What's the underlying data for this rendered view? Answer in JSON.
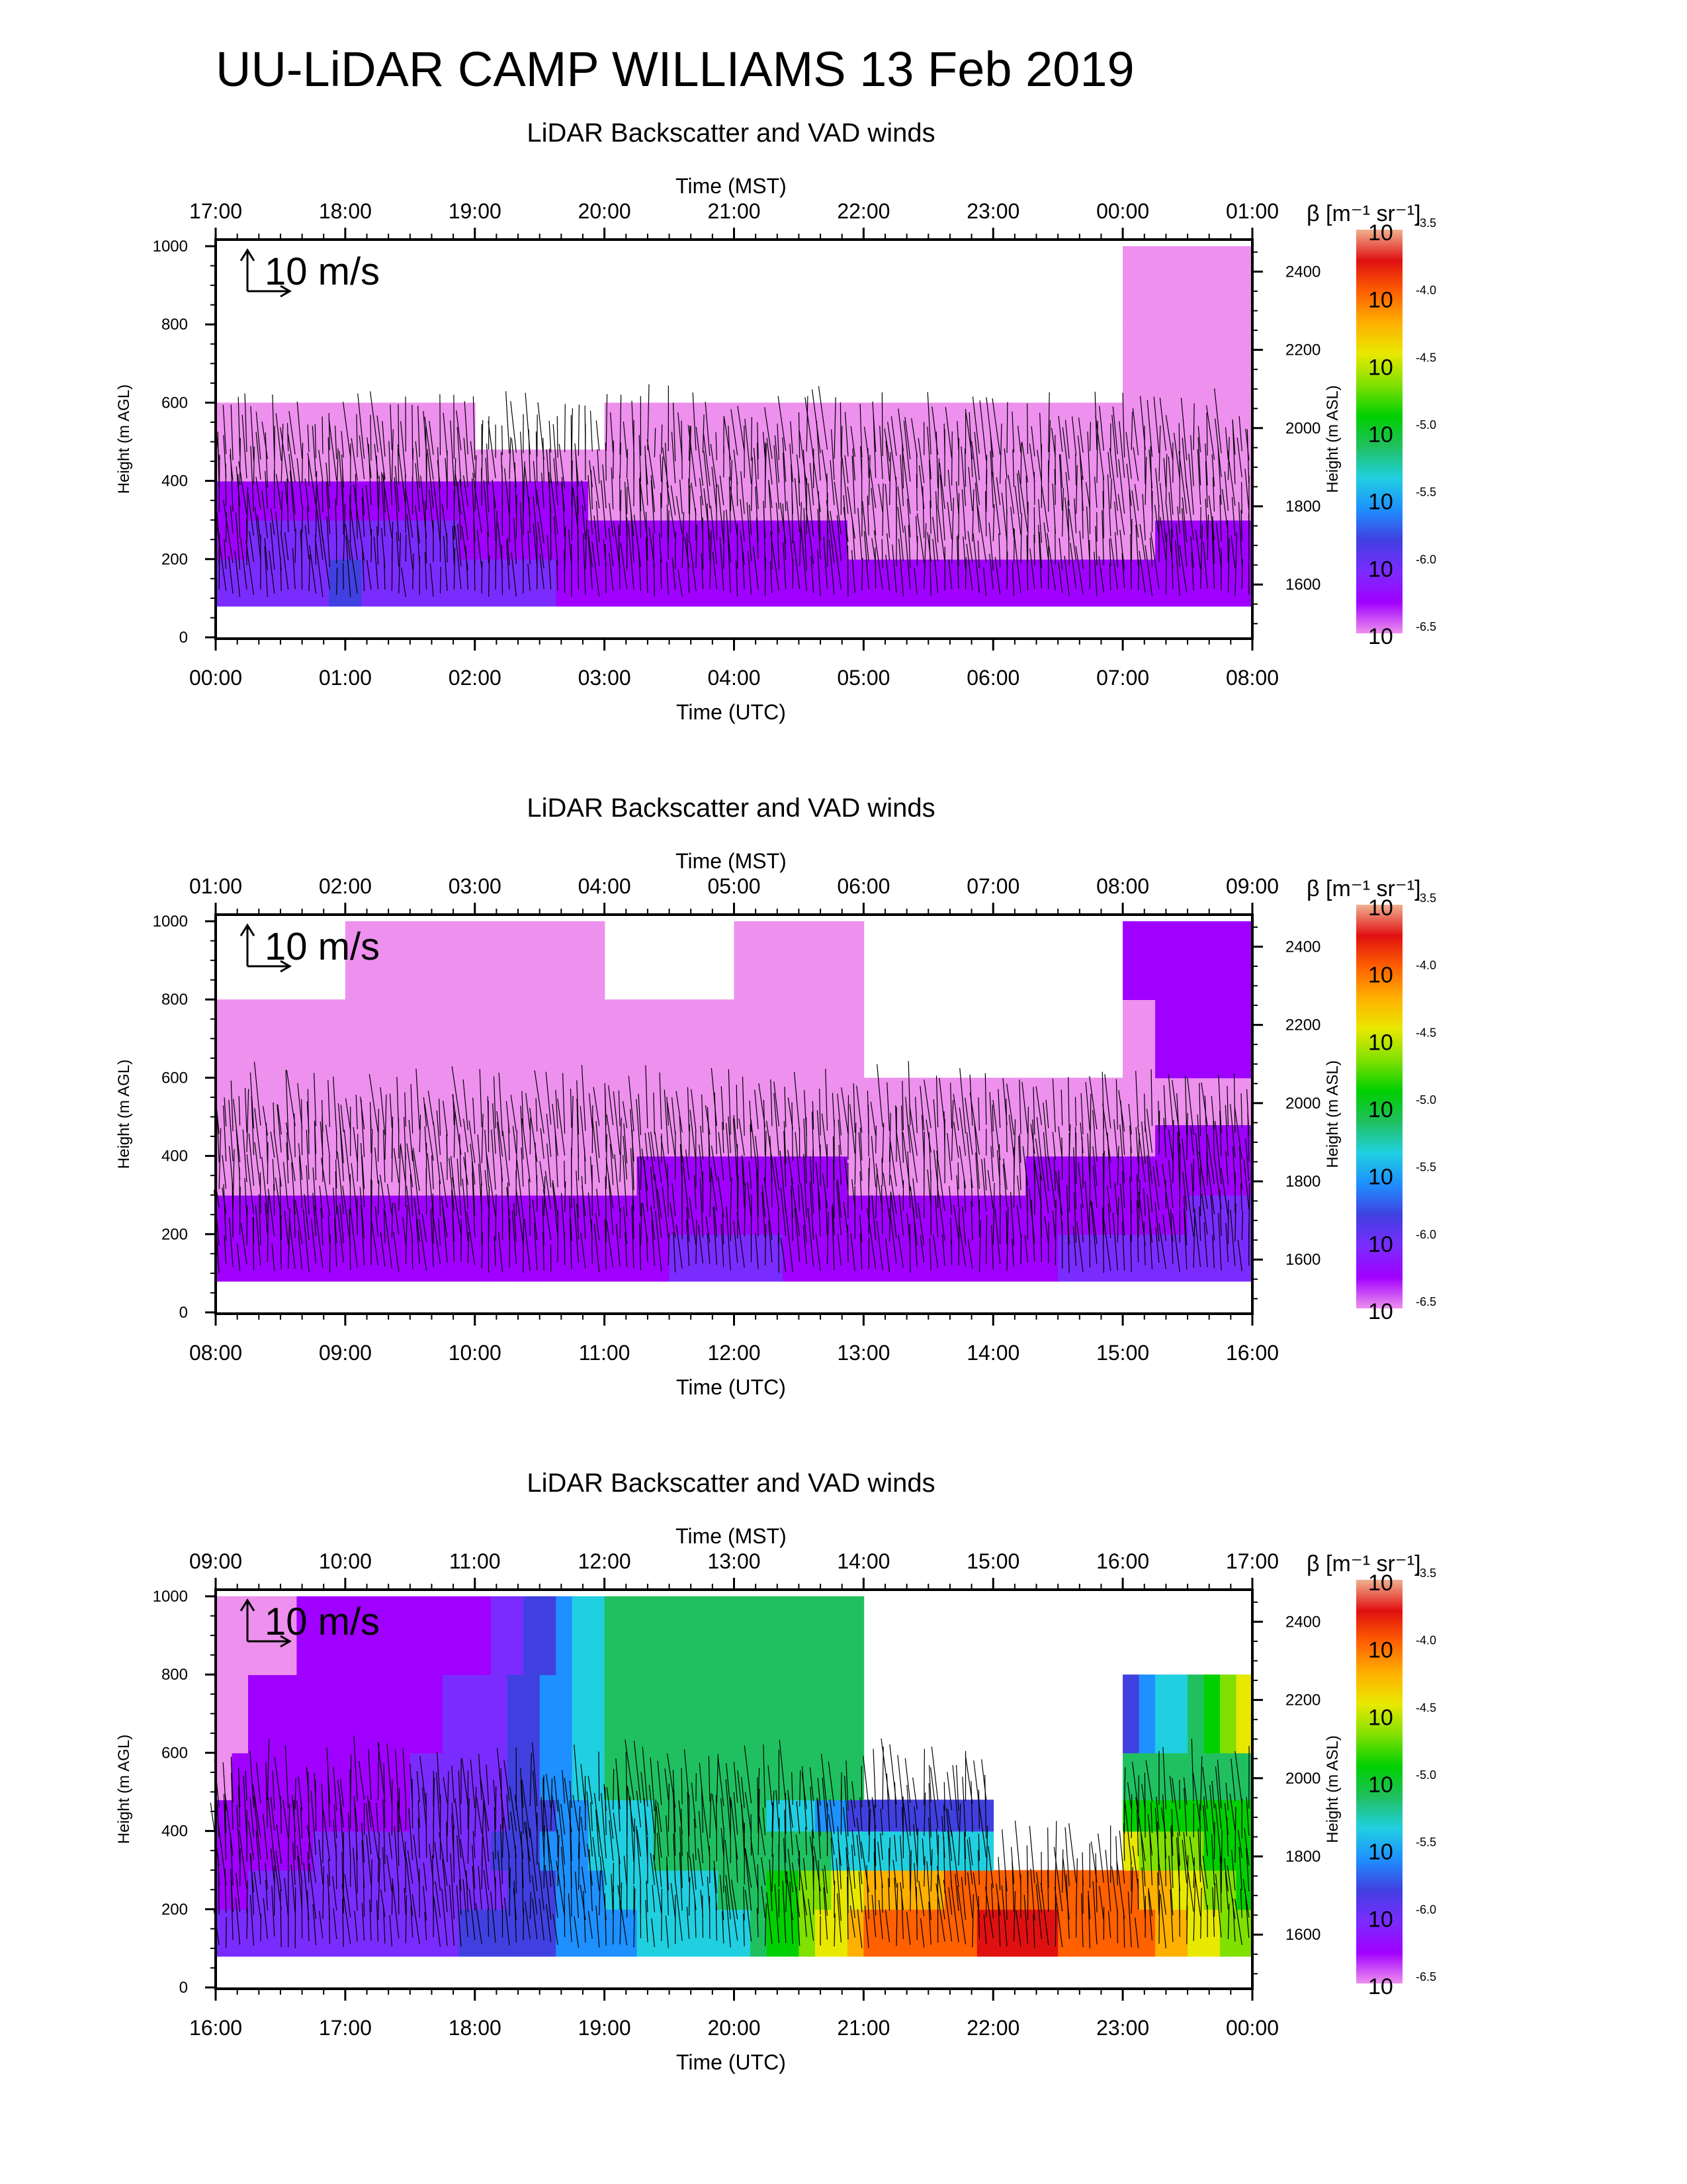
{
  "page": {
    "title": "UU-LiDAR CAMP WILLIAMS 13 Feb 2019"
  },
  "colors": {
    "scale": [
      "#ee90ee",
      "#a000ff",
      "#7a2cff",
      "#4040e0",
      "#1e90ff",
      "#20d0e0",
      "#20c060",
      "#00d000",
      "#80e000",
      "#e8e800",
      "#ffb000",
      "#ff6000",
      "#e01010",
      "#f0b090"
    ],
    "plot_frame": "#000000",
    "wind_arrow": "#000000"
  },
  "colorbar": {
    "label": "β [m⁻¹ sr⁻¹]",
    "ticks": [
      {
        "base": "10",
        "exp": "-3.5"
      },
      {
        "base": "10",
        "exp": "-4.0"
      },
      {
        "base": "10",
        "exp": "-4.5"
      },
      {
        "base": "10",
        "exp": "-5.0"
      },
      {
        "base": "10",
        "exp": "-5.5"
      },
      {
        "base": "10",
        "exp": "-6.0"
      },
      {
        "base": "10",
        "exp": "-6.5"
      }
    ]
  },
  "chart_data": [
    {
      "type": "heatmap",
      "title": "LiDAR Backscatter and VAD winds",
      "x_top_label": "Time (MST)",
      "x_top_ticks": [
        "17:00",
        "18:00",
        "19:00",
        "20:00",
        "21:00",
        "22:00",
        "23:00",
        "00:00",
        "01:00"
      ],
      "xlabel": "Time (UTC)",
      "x_ticks": [
        "00:00",
        "01:00",
        "02:00",
        "03:00",
        "04:00",
        "05:00",
        "06:00",
        "07:00",
        "08:00"
      ],
      "ylabel": "Height (m AGL)",
      "y_ticks": [
        "0",
        "200",
        "400",
        "600",
        "800",
        "1000"
      ],
      "ylim": [
        0,
        1000
      ],
      "y2label": "Height (m ASL)",
      "y2_ticks": [
        "1600",
        "1800",
        "2000",
        "2200",
        "2400"
      ],
      "reference_vector": "10 m/s",
      "colorbar_range_log10": [
        -6.5,
        -3.5
      ],
      "backscatter_log10": {
        "x_utc_hours": [
          0,
          1,
          2,
          3,
          4,
          5,
          6,
          7,
          8
        ],
        "height_m": [
          80,
          200,
          300,
          400,
          480,
          600,
          800,
          1000
        ],
        "note_values": "rows = height, cols = time",
        "values": [
          [
            -6.0,
            -5.9,
            -6.1,
            -6.2,
            -6.2,
            -6.3,
            -6.3,
            -6.3,
            -6.2
          ],
          [
            -6.2,
            -6.0,
            -6.2,
            -6.3,
            -6.3,
            -6.4,
            -6.4,
            -6.4,
            -6.3
          ],
          [
            -6.3,
            -6.3,
            -6.3,
            -6.4,
            -6.4,
            -6.4,
            -6.4,
            -6.4,
            -6.4
          ],
          [
            -6.4,
            -6.4,
            -6.4,
            -6.5,
            -6.5,
            -6.5,
            -6.5,
            -6.5,
            -6.4
          ],
          [
            -6.5,
            -6.5,
            null,
            -6.5,
            -6.5,
            -6.5,
            -6.5,
            -6.5,
            -6.5
          ],
          [
            null,
            null,
            null,
            null,
            null,
            null,
            null,
            -6.5,
            null
          ],
          [
            null,
            null,
            null,
            null,
            null,
            null,
            null,
            -6.5,
            null
          ],
          [
            null,
            null,
            null,
            null,
            null,
            null,
            null,
            -6.5,
            null
          ]
        ]
      }
    },
    {
      "type": "heatmap",
      "title": "LiDAR Backscatter and VAD winds",
      "x_top_label": "Time (MST)",
      "x_top_ticks": [
        "01:00",
        "02:00",
        "03:00",
        "04:00",
        "05:00",
        "06:00",
        "07:00",
        "08:00",
        "09:00"
      ],
      "xlabel": "Time (UTC)",
      "x_ticks": [
        "08:00",
        "09:00",
        "10:00",
        "11:00",
        "12:00",
        "13:00",
        "14:00",
        "15:00",
        "16:00"
      ],
      "ylabel": "Height (m AGL)",
      "y_ticks": [
        "0",
        "200",
        "400",
        "600",
        "800",
        "1000"
      ],
      "ylim": [
        0,
        1000
      ],
      "y2label": "Height (m ASL)",
      "y2_ticks": [
        "1600",
        "1800",
        "2000",
        "2200",
        "2400"
      ],
      "reference_vector": "10 m/s",
      "colorbar_range_log10": [
        -6.5,
        -3.5
      ],
      "backscatter_log10": {
        "x_utc_hours": [
          8,
          9,
          10,
          11,
          12,
          13,
          14,
          15,
          16
        ],
        "height_m": [
          80,
          200,
          300,
          400,
          480,
          600,
          800,
          1000
        ],
        "values": [
          [
            -6.3,
            -6.3,
            -6.3,
            -6.2,
            -6.1,
            -6.3,
            -6.2,
            -6.1,
            -5.9
          ],
          [
            -6.3,
            -6.3,
            -6.3,
            -6.3,
            -6.2,
            -6.3,
            -6.3,
            -6.2,
            -6.1
          ],
          [
            -6.4,
            -6.4,
            -6.4,
            -6.4,
            -6.3,
            -6.4,
            -6.4,
            -6.3,
            -6.2
          ],
          [
            -6.4,
            -6.4,
            -6.4,
            -6.4,
            -6.4,
            -6.4,
            -6.4,
            -6.4,
            -6.3
          ],
          [
            -6.5,
            -6.5,
            -6.5,
            -6.5,
            -6.5,
            -6.5,
            -6.5,
            -6.4,
            -6.4
          ],
          [
            -6.5,
            -6.5,
            -6.5,
            -6.5,
            -6.4,
            null,
            null,
            -6.4,
            -6.3
          ],
          [
            null,
            -6.5,
            -6.5,
            null,
            -6.5,
            null,
            null,
            -6.3,
            -6.3
          ],
          [
            null,
            null,
            -6.5,
            null,
            null,
            null,
            null,
            -6.2,
            -6.2
          ]
        ]
      }
    },
    {
      "type": "heatmap",
      "title": "LiDAR Backscatter and VAD winds",
      "x_top_label": "Time (MST)",
      "x_top_ticks": [
        "09:00",
        "10:00",
        "11:00",
        "12:00",
        "13:00",
        "14:00",
        "15:00",
        "16:00",
        "17:00"
      ],
      "xlabel": "Time (UTC)",
      "x_ticks": [
        "16:00",
        "17:00",
        "18:00",
        "19:00",
        "20:00",
        "21:00",
        "22:00",
        "23:00",
        "00:00"
      ],
      "ylabel": "Height (m AGL)",
      "y_ticks": [
        "0",
        "200",
        "400",
        "600",
        "800",
        "1000"
      ],
      "ylim": [
        0,
        1000
      ],
      "y2label": "Height (m ASL)",
      "y2_ticks": [
        "1600",
        "1800",
        "2000",
        "2200",
        "2400"
      ],
      "reference_vector": "10 m/s",
      "colorbar_range_log10": [
        -6.5,
        -3.5
      ],
      "backscatter_log10": {
        "x_utc_hours": [
          16,
          17,
          18,
          19,
          20,
          21,
          22,
          23,
          24
        ],
        "height_m": [
          80,
          200,
          300,
          400,
          480,
          600,
          800,
          1000
        ],
        "values": [
          [
            -6.1,
            -6.0,
            -5.9,
            -5.5,
            -5.3,
            -4.0,
            -3.8,
            -3.9,
            -4.8
          ],
          [
            -6.2,
            -6.0,
            -6.0,
            -5.4,
            -5.2,
            -4.2,
            -4.0,
            -4.0,
            -4.9
          ],
          [
            -6.3,
            -6.1,
            -6.0,
            -5.3,
            -5.1,
            -5.3,
            null,
            -4.5,
            -5.0
          ],
          [
            -6.3,
            -6.2,
            -6.1,
            -5.3,
            -5.1,
            -5.8,
            null,
            -4.8,
            -5.0
          ],
          [
            -6.4,
            -6.2,
            -6.1,
            -5.2,
            -5.2,
            null,
            null,
            -5.2,
            -5.0
          ],
          [
            -6.4,
            -6.3,
            -6.1,
            -5.2,
            -5.2,
            null,
            null,
            -5.8,
            -4.3
          ],
          [
            -6.5,
            -6.3,
            -6.2,
            -5.2,
            -5.2,
            null,
            null,
            null,
            -5.2
          ],
          [
            -6.5,
            -6.4,
            -6.3,
            -5.2,
            -5.3,
            null,
            null,
            null,
            -5.3
          ]
        ]
      }
    }
  ]
}
